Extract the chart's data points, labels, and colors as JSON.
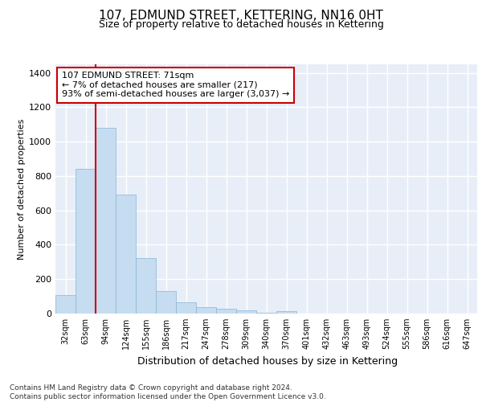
{
  "title": "107, EDMUND STREET, KETTERING, NN16 0HT",
  "subtitle": "Size of property relative to detached houses in Kettering",
  "xlabel": "Distribution of detached houses by size in Kettering",
  "ylabel": "Number of detached properties",
  "categories": [
    "32sqm",
    "63sqm",
    "94sqm",
    "124sqm",
    "155sqm",
    "186sqm",
    "217sqm",
    "247sqm",
    "278sqm",
    "309sqm",
    "340sqm",
    "370sqm",
    "401sqm",
    "432sqm",
    "463sqm",
    "493sqm",
    "524sqm",
    "555sqm",
    "586sqm",
    "616sqm",
    "647sqm"
  ],
  "values": [
    107,
    843,
    1079,
    690,
    325,
    130,
    65,
    38,
    28,
    18,
    5,
    12,
    0,
    0,
    0,
    0,
    0,
    0,
    0,
    0,
    0
  ],
  "bar_color": "#c6dcf0",
  "bar_edge_color": "#8ab4d4",
  "vline_x": 1.5,
  "vline_color": "#cc0000",
  "annotation_text": "107 EDMUND STREET: 71sqm\n← 7% of detached houses are smaller (217)\n93% of semi-detached houses are larger (3,037) →",
  "annotation_box_color": "#ffffff",
  "annotation_box_edge_color": "#cc0000",
  "ylim": [
    0,
    1450
  ],
  "yticks": [
    0,
    200,
    400,
    600,
    800,
    1000,
    1200,
    1400
  ],
  "background_color": "#e8eef8",
  "grid_color": "#ffffff",
  "footnote": "Contains HM Land Registry data © Crown copyright and database right 2024.\nContains public sector information licensed under the Open Government Licence v3.0.",
  "title_fontsize": 11,
  "subtitle_fontsize": 9,
  "xlabel_fontsize": 9,
  "ylabel_fontsize": 8,
  "annotation_fontsize": 8,
  "footnote_fontsize": 6.5,
  "tick_fontsize": 7
}
